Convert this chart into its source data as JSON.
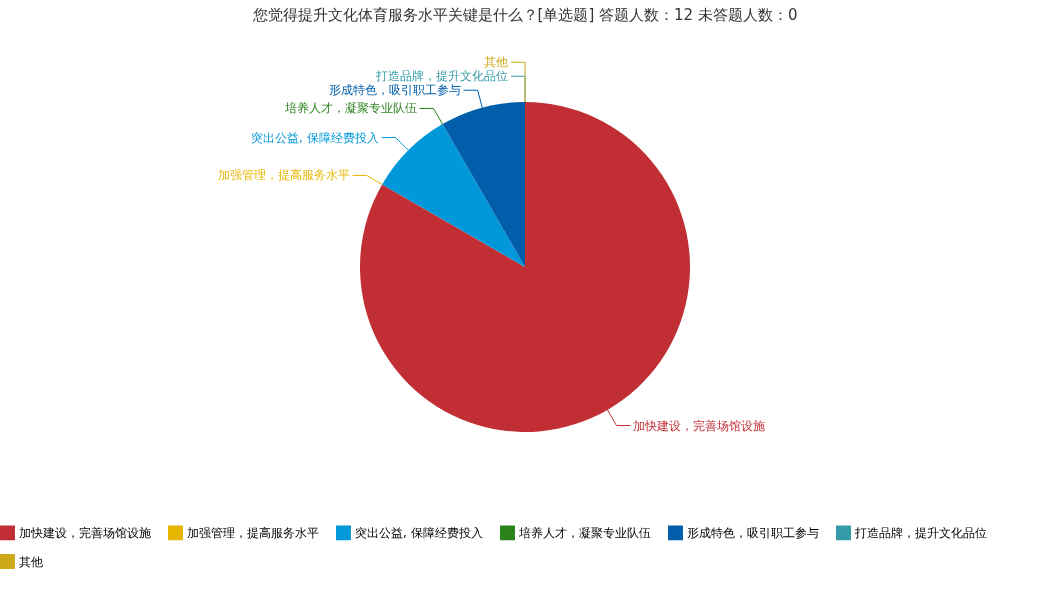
{
  "chart_data": {
    "type": "pie",
    "title": "您觉得提升文化体育服务水平关键是什么？[单选题]  答题人数：12  未答题人数：0",
    "categories": [
      "加快建设，完善场馆设施",
      "加强管理，提高服务水平",
      "突出公益, 保障经费投入",
      "培养人才，凝聚专业队伍",
      "形成特色，吸引职工参与",
      "打造品牌，提升文化品位",
      "其他"
    ],
    "values": [
      83.34,
      0,
      8.33,
      0,
      8.33,
      0,
      0
    ],
    "colors": [
      "#c12e34",
      "#e6b600",
      "#0098d9",
      "#2b821d",
      "#005eaa",
      "#339ca8",
      "#cda819"
    ],
    "legend": "bottom"
  }
}
